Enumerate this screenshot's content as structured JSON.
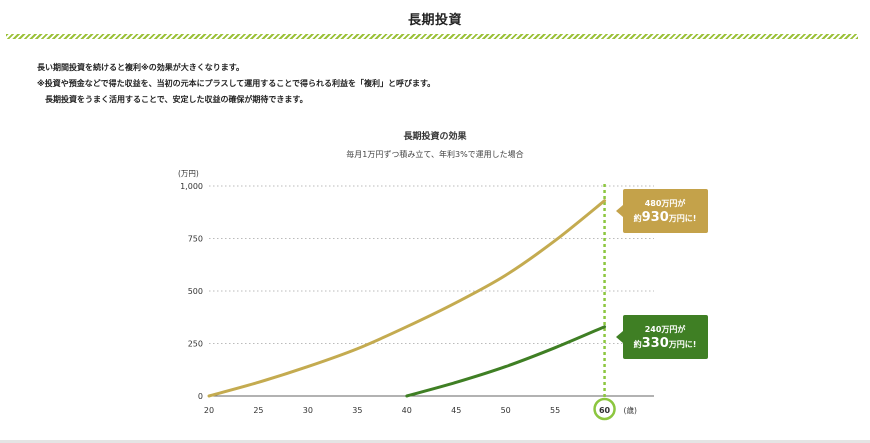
{
  "page": {
    "title": "長期投資",
    "intro": [
      "長い期間投資を続けると複利※の効果が大きくなります。",
      "※投資や預金などで得た収益を、当初の元本にプラスして運用することで得られる利益を「複利」と呼びます。",
      "長期投資をうまく活用することで、安定した収益の確保が期待できます。"
    ]
  },
  "colors": {
    "stripe": "#9cc23a",
    "series_gold": "#c4ab50",
    "series_green": "#3f7f24",
    "marker_line": "#8cc63f",
    "callout_gold": "#c4a24a",
    "callout_green": "#3f7f24"
  },
  "chart_data": {
    "type": "line",
    "title": "長期投資の効果",
    "subtitle": "毎月1万円ずつ積み立て、年利3%で運用した場合",
    "ylabel": "(万円)",
    "xlabel_unit": "(歳)",
    "ylim": [
      0,
      1000
    ],
    "xlim": [
      20,
      65
    ],
    "y_ticks": [
      "0",
      "250",
      "500",
      "750",
      "1,000"
    ],
    "y_tick_values": [
      0,
      250,
      500,
      750,
      1000
    ],
    "x_ticks": [
      "20",
      "25",
      "30",
      "35",
      "40",
      "45",
      "50",
      "55"
    ],
    "x_tick_values": [
      20,
      25,
      30,
      35,
      40,
      45,
      50,
      55
    ],
    "highlight_x": 60,
    "highlight_label": "60",
    "grid": "horizontal-dotted",
    "series": [
      {
        "color": "#c4ab50",
        "x": [
          20,
          25,
          30,
          35,
          40,
          45,
          50,
          55,
          60
        ],
        "y": [
          0,
          65,
          140,
          225,
          330,
          445,
          575,
          740,
          930
        ]
      },
      {
        "color": "#3f7f24",
        "x": [
          40,
          45,
          50,
          55,
          60
        ],
        "y": [
          0,
          65,
          140,
          230,
          330
        ]
      }
    ],
    "annotations": [
      {
        "line1": "480万円が",
        "prefix": "約",
        "value": "930",
        "suffix": "万円に!",
        "y": 930,
        "color": "#c4a24a"
      },
      {
        "line1": "240万円が",
        "prefix": "約",
        "value": "330",
        "suffix": "万円に!",
        "y": 330,
        "color": "#3f7f24"
      }
    ]
  }
}
